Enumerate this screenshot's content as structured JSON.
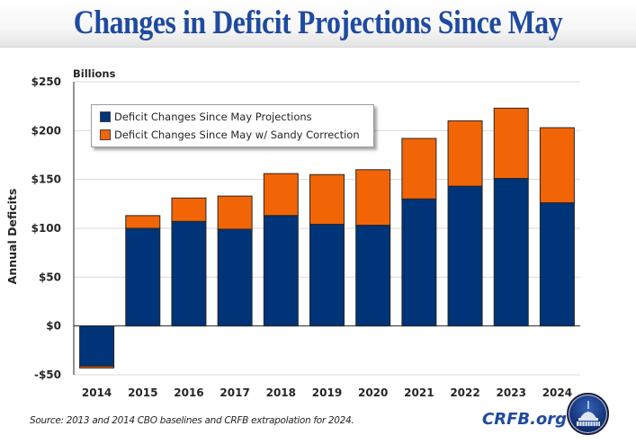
{
  "header": {
    "title": "Changes in Deficit Projections Since May"
  },
  "colors": {
    "title": "#1f4aa0",
    "series_blue": "#003478",
    "series_orange": "#f26506",
    "gridline": "#d9d9d9",
    "axis": "#262626"
  },
  "chart_data": {
    "type": "bar",
    "stacked": true,
    "title": "Changes in Deficit Projections Since May",
    "xlabel": "",
    "ylabel": "Annual Deficits",
    "unit_label": "Billions",
    "categories": [
      "2014",
      "2015",
      "2016",
      "2017",
      "2018",
      "2019",
      "2020",
      "2021",
      "2022",
      "2023",
      "2024"
    ],
    "series": [
      {
        "name": "Deficit Changes Since May Projections",
        "color": "#003478",
        "values": [
          -41,
          100,
          107,
          99,
          113,
          104,
          103,
          130,
          143,
          151,
          126
        ]
      },
      {
        "name": "Deficit Changes Since May w/ Sandy Correction",
        "color": "#f26506",
        "totals": [
          -43,
          113,
          131,
          133,
          156,
          155,
          160,
          192,
          210,
          223,
          203
        ]
      }
    ],
    "ylim": [
      -50,
      250
    ],
    "yticks": [
      -50,
      0,
      50,
      100,
      150,
      200,
      250
    ],
    "ytick_labels": [
      "-$50",
      "$0",
      "$50",
      "$100",
      "$150",
      "$200",
      "$250"
    ],
    "grid": true,
    "legend": "top-left"
  },
  "footer": {
    "source": "Source: 2013 and 2014 CBO baselines and CRFB extrapolation for 2024.",
    "brand": "CRFB.org",
    "logo_icon": "capitol-dome-logo"
  }
}
